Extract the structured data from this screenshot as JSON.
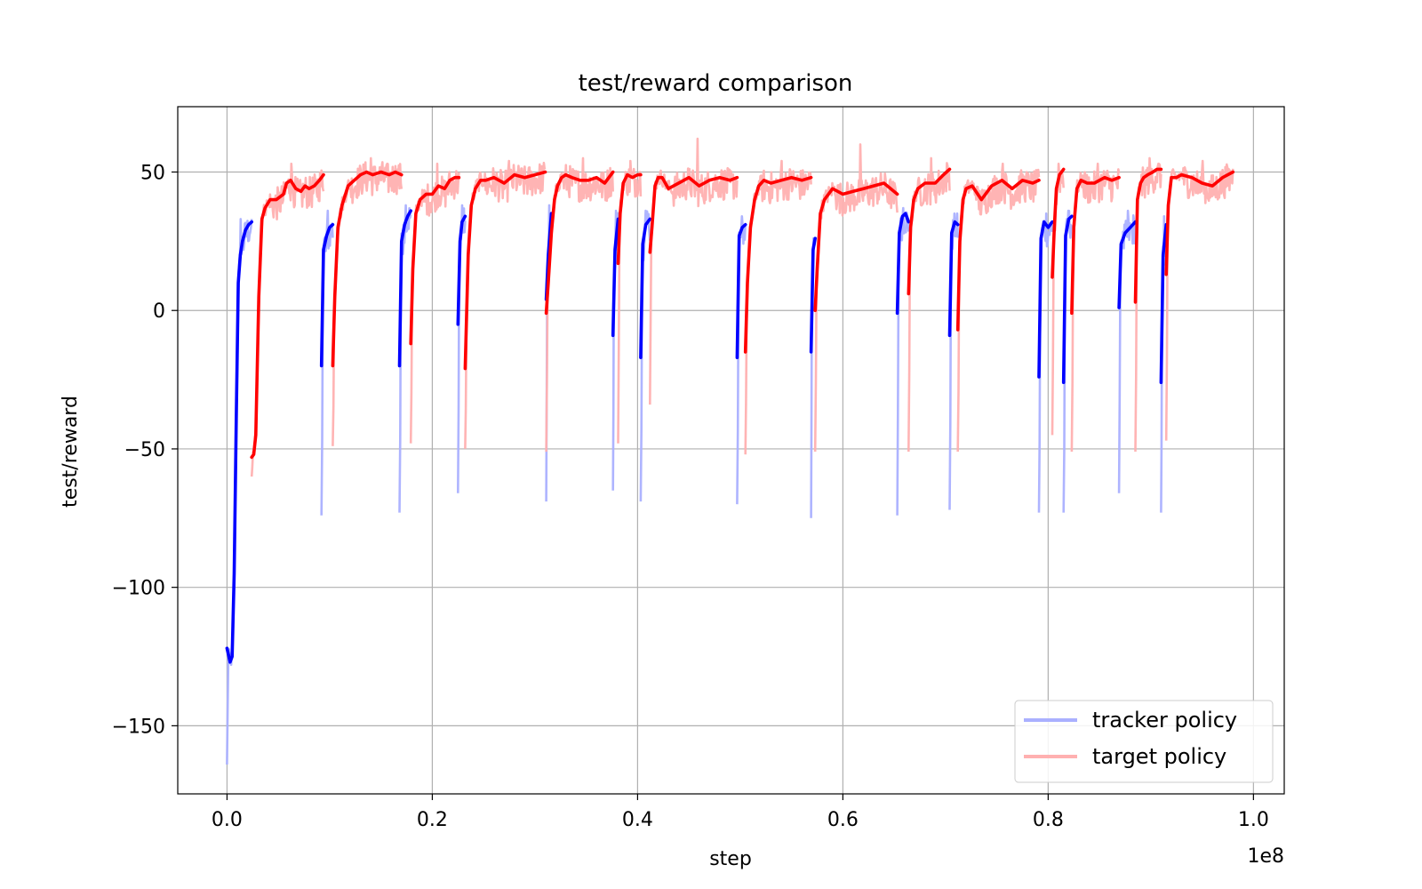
{
  "chart_data": {
    "type": "line",
    "title": "test/reward comparison",
    "xlabel": "step",
    "ylabel": "test/reward",
    "x_offset_label": "1e8",
    "xlim": [
      -0.048,
      1.03
    ],
    "ylim": [
      -174.6,
      73.6
    ],
    "xticks": [
      0.0,
      0.2,
      0.4,
      0.6,
      0.8,
      1.0
    ],
    "xtick_labels": [
      "0.0",
      "0.2",
      "0.4",
      "0.6",
      "0.8",
      "1.0"
    ],
    "yticks": [
      -150,
      -100,
      -50,
      0,
      50
    ],
    "ytick_labels": [
      "−150",
      "−100",
      "−50",
      "0",
      "50"
    ],
    "grid": true,
    "legend_position": "lower-right",
    "legend": [
      "tracker policy",
      "target policy"
    ],
    "series_colors": {
      "tracker_raw": "#aab0ff",
      "tracker_smooth": "#0000ff",
      "target_raw": "#ffb0b0",
      "target_smooth": "#ff0000"
    },
    "series": [
      {
        "name": "tracker policy",
        "segments": [
          {
            "x": [
              0.0,
              0.003,
              0.005,
              0.007,
              0.009,
              0.011,
              0.013,
              0.015,
              0.018,
              0.021,
              0.024
            ],
            "smooth": [
              -122,
              -127,
              -125,
              -95,
              -40,
              10,
              20,
              25,
              29,
              31,
              32
            ],
            "raw_min": -164,
            "raw_max": 33
          },
          {
            "x": [
              0.092,
              0.094,
              0.097,
              0.1,
              0.103
            ],
            "smooth": [
              -20,
              22,
              27,
              30,
              31
            ],
            "raw_min": -74,
            "raw_max": 36
          },
          {
            "x": [
              0.168,
              0.17,
              0.173,
              0.176,
              0.179
            ],
            "smooth": [
              -20,
              25,
              31,
              34,
              36
            ],
            "raw_min": -73,
            "raw_max": 38
          },
          {
            "x": [
              0.225,
              0.227,
              0.229,
              0.232
            ],
            "smooth": [
              -5,
              25,
              32,
              34
            ],
            "raw_min": -66,
            "raw_max": 38
          },
          {
            "x": [
              0.311,
              0.313,
              0.316
            ],
            "smooth": [
              4,
              20,
              35
            ],
            "raw_min": -69,
            "raw_max": 38
          },
          {
            "x": [
              0.376,
              0.378,
              0.381
            ],
            "smooth": [
              -9,
              22,
              33
            ],
            "raw_min": -65,
            "raw_max": 36
          },
          {
            "x": [
              0.403,
              0.405,
              0.408,
              0.412
            ],
            "smooth": [
              -17,
              24,
              31,
              33
            ],
            "raw_min": -69,
            "raw_max": 36
          },
          {
            "x": [
              0.497,
              0.499,
              0.502,
              0.505
            ],
            "smooth": [
              -17,
              27,
              30,
              31
            ],
            "raw_min": -70,
            "raw_max": 34
          },
          {
            "x": [
              0.569,
              0.571,
              0.573
            ],
            "smooth": [
              -15,
              22,
              26
            ],
            "raw_min": -75,
            "raw_max": 26
          },
          {
            "x": [
              0.653,
              0.655,
              0.658,
              0.661,
              0.664
            ],
            "smooth": [
              -1,
              28,
              34,
              35,
              32
            ],
            "raw_min": -74,
            "raw_max": 37
          },
          {
            "x": [
              0.704,
              0.706,
              0.709,
              0.712
            ],
            "smooth": [
              -9,
              28,
              32,
              31
            ],
            "raw_min": -72,
            "raw_max": 35
          },
          {
            "x": [
              0.791,
              0.793,
              0.796,
              0.8,
              0.804
            ],
            "smooth": [
              -24,
              26,
              32,
              30,
              32
            ],
            "raw_min": -73,
            "raw_max": 35
          },
          {
            "x": [
              0.815,
              0.817,
              0.82,
              0.823
            ],
            "smooth": [
              -26,
              27,
              33,
              34
            ],
            "raw_min": -73,
            "raw_max": 36
          },
          {
            "x": [
              0.869,
              0.871,
              0.875,
              0.88,
              0.885
            ],
            "smooth": [
              1,
              24,
              28,
              30,
              32
            ],
            "raw_min": -66,
            "raw_max": 36
          },
          {
            "x": [
              0.91,
              0.912,
              0.915
            ],
            "smooth": [
              -26,
              20,
              31
            ],
            "raw_min": -73,
            "raw_max": 34
          }
        ]
      },
      {
        "name": "target policy",
        "segments": [
          {
            "x": [
              0.024,
              0.026,
              0.028,
              0.031,
              0.034,
              0.037,
              0.042,
              0.048,
              0.055,
              0.058,
              0.062,
              0.067,
              0.072,
              0.076,
              0.08,
              0.085,
              0.09,
              0.094
            ],
            "smooth": [
              -53,
              -52,
              -45,
              5,
              33,
              37,
              40,
              40,
              42,
              46,
              47,
              44,
              43,
              45,
              44,
              45,
              47,
              49
            ],
            "raw_min": -60,
            "raw_max": 53
          },
          {
            "x": [
              0.103,
              0.105,
              0.108,
              0.112,
              0.118,
              0.124,
              0.13,
              0.136,
              0.142,
              0.15,
              0.158,
              0.164,
              0.17
            ],
            "smooth": [
              -20,
              5,
              30,
              38,
              45,
              47,
              49,
              50,
              49,
              50,
              49,
              50,
              49
            ],
            "raw_min": -49,
            "raw_max": 55
          },
          {
            "x": [
              0.179,
              0.181,
              0.184,
              0.188,
              0.194,
              0.2,
              0.206,
              0.212,
              0.217,
              0.222,
              0.226
            ],
            "smooth": [
              -12,
              15,
              35,
              40,
              42,
              42,
              45,
              44,
              47,
              48,
              48
            ],
            "raw_min": -48,
            "raw_max": 53
          },
          {
            "x": [
              0.232,
              0.235,
              0.238,
              0.242,
              0.247,
              0.252,
              0.26,
              0.27,
              0.28,
              0.29,
              0.3,
              0.31
            ],
            "smooth": [
              -21,
              20,
              38,
              44,
              47,
              47,
              48,
              46,
              49,
              48,
              49,
              50
            ],
            "raw_min": -50,
            "raw_max": 54
          },
          {
            "x": [
              0.311,
              0.313,
              0.316,
              0.319,
              0.322,
              0.326,
              0.33,
              0.336,
              0.344,
              0.352,
              0.36,
              0.368,
              0.376
            ],
            "smooth": [
              -1,
              10,
              28,
              40,
              45,
              48,
              49,
              48,
              47,
              47,
              48,
              46,
              50
            ],
            "raw_min": -51,
            "raw_max": 55
          },
          {
            "x": [
              0.381,
              0.383,
              0.386,
              0.39,
              0.395,
              0.4,
              0.403
            ],
            "smooth": [
              17,
              35,
              46,
              49,
              48,
              49,
              49
            ],
            "raw_min": -48,
            "raw_max": 54
          },
          {
            "x": [
              0.412,
              0.414,
              0.417,
              0.42,
              0.424,
              0.43,
              0.44,
              0.45,
              0.46,
              0.47,
              0.48,
              0.49,
              0.497
            ],
            "smooth": [
              21,
              30,
              45,
              48,
              48,
              44,
              46,
              48,
              45,
              47,
              48,
              47,
              48
            ],
            "raw_min": -34,
            "raw_max": 62
          },
          {
            "x": [
              0.505,
              0.507,
              0.51,
              0.514,
              0.518,
              0.523,
              0.53,
              0.54,
              0.55,
              0.56,
              0.569
            ],
            "smooth": [
              -15,
              10,
              30,
              40,
              45,
              47,
              46,
              47,
              48,
              47,
              48
            ],
            "raw_min": -52,
            "raw_max": 54
          },
          {
            "x": [
              0.573,
              0.575,
              0.578,
              0.582,
              0.586,
              0.59,
              0.6,
              0.61,
              0.62,
              0.63,
              0.64,
              0.653
            ],
            "smooth": [
              0,
              15,
              35,
              40,
              42,
              44,
              42,
              43,
              44,
              45,
              46,
              42
            ],
            "raw_min": -51,
            "raw_max": 60
          },
          {
            "x": [
              0.664,
              0.666,
              0.669,
              0.673,
              0.68,
              0.69,
              0.698,
              0.704
            ],
            "smooth": [
              6,
              30,
              40,
              44,
              46,
              46,
              49,
              51
            ],
            "raw_min": -51,
            "raw_max": 55
          },
          {
            "x": [
              0.712,
              0.714,
              0.717,
              0.72,
              0.726,
              0.735,
              0.745,
              0.755,
              0.765,
              0.775,
              0.785,
              0.791
            ],
            "smooth": [
              -7,
              25,
              40,
              44,
              45,
              40,
              45,
              47,
              44,
              47,
              46,
              47
            ],
            "raw_min": -51,
            "raw_max": 53
          },
          {
            "x": [
              0.804,
              0.806,
              0.808,
              0.811,
              0.815
            ],
            "smooth": [
              12,
              30,
              44,
              49,
              51
            ],
            "raw_min": -45,
            "raw_max": 53
          },
          {
            "x": [
              0.823,
              0.825,
              0.828,
              0.832,
              0.838,
              0.845,
              0.855,
              0.862,
              0.869
            ],
            "smooth": [
              -1,
              30,
              44,
              47,
              46,
              46,
              48,
              47,
              48
            ],
            "raw_min": -51,
            "raw_max": 53
          },
          {
            "x": [
              0.885,
              0.887,
              0.89,
              0.893,
              0.897,
              0.902,
              0.906,
              0.91
            ],
            "smooth": [
              3,
              40,
              46,
              48,
              49,
              50,
              51,
              51
            ],
            "raw_min": -51,
            "raw_max": 55
          },
          {
            "x": [
              0.915,
              0.917,
              0.92,
              0.925,
              0.93,
              0.94,
              0.95,
              0.96,
              0.97,
              0.98
            ],
            "smooth": [
              13,
              38,
              48,
              48,
              49,
              48,
              46,
              45,
              48,
              50
            ],
            "raw_min": -47,
            "raw_max": 54
          }
        ]
      }
    ]
  }
}
